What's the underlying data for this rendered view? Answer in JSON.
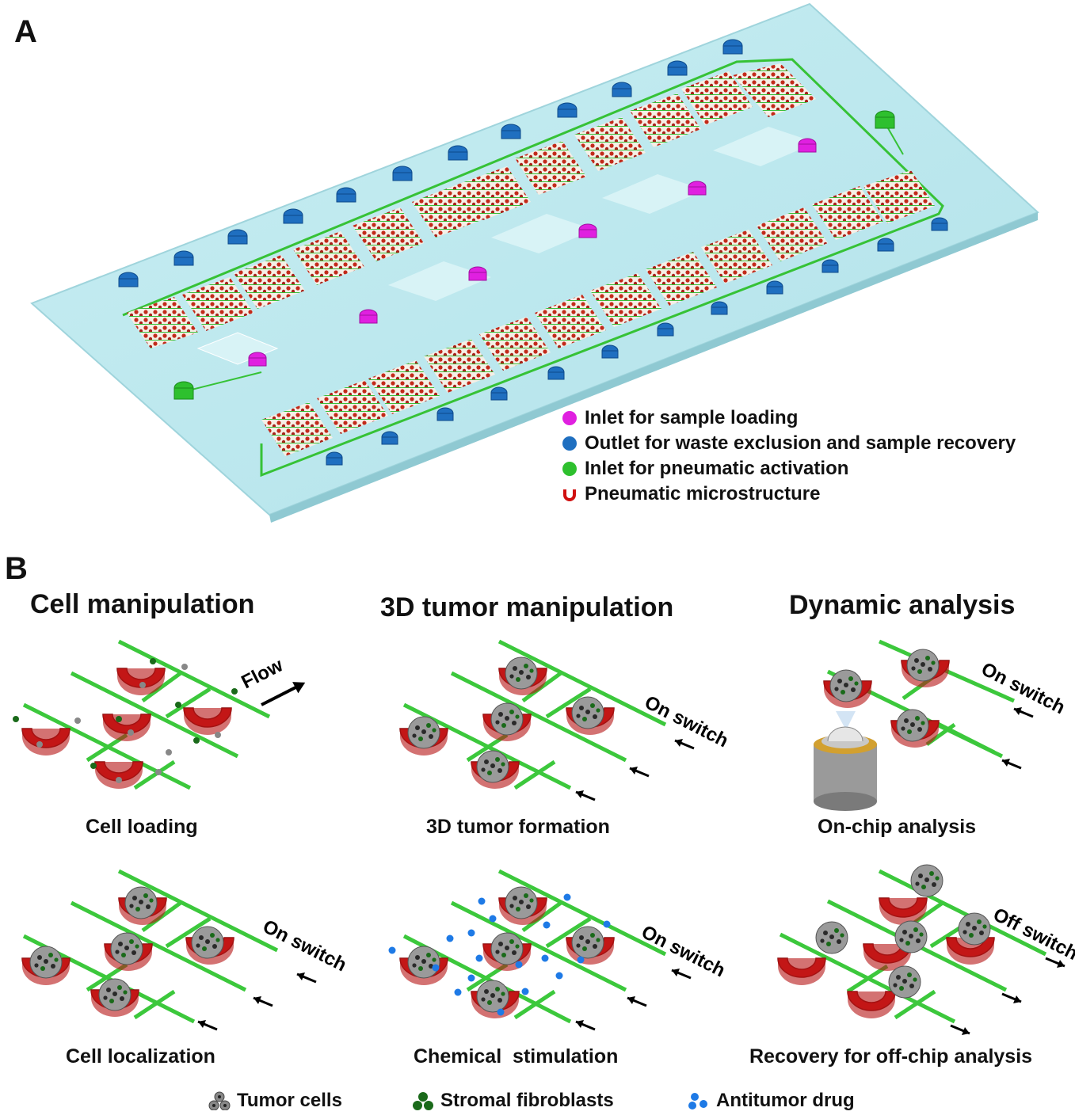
{
  "panel_a": {
    "label": "A",
    "legend": [
      {
        "text": "Inlet for sample loading",
        "color": "#e020e0",
        "icon": "magenta-dot-icon"
      },
      {
        "text": "Outlet for waste exclusion and sample recovery",
        "color": "#1f6fc0",
        "icon": "blue-dot-icon"
      },
      {
        "text": "Inlet for pneumatic activation",
        "color": "#2ec02e",
        "icon": "green-dot-icon"
      },
      {
        "text": "Pneumatic microstructure",
        "color": "#d01010",
        "icon": "red-horseshoe-icon"
      }
    ]
  },
  "panel_b": {
    "label": "B",
    "columns": [
      {
        "title": "Cell manipulation"
      },
      {
        "title": "3D tumor manipulation"
      },
      {
        "title": "Dynamic analysis"
      }
    ],
    "captions": {
      "cell_loading": "Cell loading",
      "cell_localization": "Cell localization",
      "tumor_formation": "3D tumor formation",
      "chemical_stimulation": "Chemical  stimulation",
      "on_chip_analysis": "On-chip analysis",
      "recovery": "Recovery for off-chip analysis"
    },
    "annotations": {
      "flow": "Flow",
      "on_switch": "On switch",
      "off_switch": "Off switch"
    },
    "legend": [
      {
        "text": "Tumor cells",
        "icon": "tumor-cells-icon",
        "color": "#888888"
      },
      {
        "text": "Stromal fibroblasts",
        "icon": "fibroblasts-icon",
        "color": "#1a6a1a"
      },
      {
        "text": "Antitumor drug",
        "icon": "drug-icon",
        "color": "#1e7ae6"
      }
    ]
  }
}
